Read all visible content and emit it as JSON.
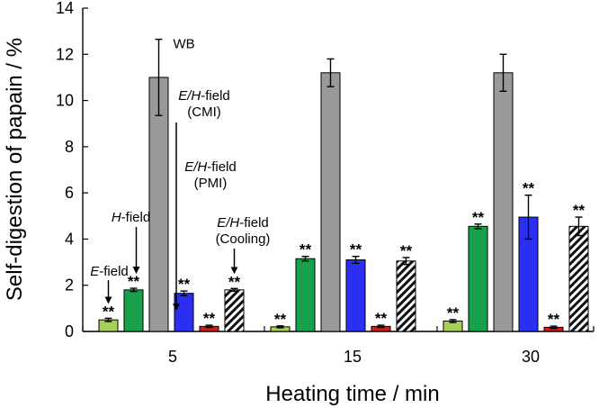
{
  "chart_data": {
    "type": "bar",
    "title": "",
    "xlabel": "Heating time / min",
    "ylabel": "Self-digestion of papain / %",
    "ylim": [
      0,
      14
    ],
    "yticks": [
      0,
      2,
      4,
      6,
      8,
      10,
      12,
      14
    ],
    "grid": false,
    "categories": [
      "5",
      "15",
      "30"
    ],
    "series": [
      {
        "name": "E-field",
        "label": "E-field",
        "color": "#a6cf5a",
        "pattern": "solid",
        "values": [
          0.5,
          0.2,
          0.45
        ],
        "errors": [
          0.07,
          0.04,
          0.06
        ],
        "marks": [
          "**",
          "**",
          "**"
        ]
      },
      {
        "name": "H-field",
        "label": "H-field",
        "color": "#19a04a",
        "pattern": "solid",
        "values": [
          1.8,
          3.15,
          4.55
        ],
        "errors": [
          0.07,
          0.1,
          0.1
        ],
        "marks": [
          "**",
          "**",
          "**"
        ]
      },
      {
        "name": "WB",
        "label": "WB",
        "color": "#999999",
        "pattern": "solid",
        "values": [
          11.0,
          11.2,
          11.2
        ],
        "errors": [
          1.65,
          0.6,
          0.8
        ],
        "marks": [
          "",
          "",
          ""
        ]
      },
      {
        "name": "E/H-field (CMI)",
        "label": "E/H-field",
        "sublabel": "(CMI)",
        "color": "#2a2ff2",
        "pattern": "solid",
        "values": [
          1.65,
          3.1,
          4.95
        ],
        "errors": [
          0.1,
          0.15,
          0.95
        ],
        "marks": [
          "**",
          "**",
          "**"
        ]
      },
      {
        "name": "E/H-field (PMI)",
        "label": "E/H-field",
        "sublabel": "(PMI)",
        "color": "#d21b1b",
        "pattern": "solid",
        "values": [
          0.22,
          0.22,
          0.18
        ],
        "errors": [
          0.05,
          0.05,
          0.05
        ],
        "marks": [
          "**",
          "**",
          "**"
        ]
      },
      {
        "name": "E/H-field (Cooling)",
        "label": "E/H-field",
        "sublabel": "(Cooling)",
        "color": "#ffffff",
        "pattern": "hatch",
        "values": [
          1.8,
          3.05,
          4.55
        ],
        "errors": [
          0.06,
          0.15,
          0.4
        ],
        "marks": [
          "**",
          "**",
          "**"
        ]
      }
    ]
  }
}
